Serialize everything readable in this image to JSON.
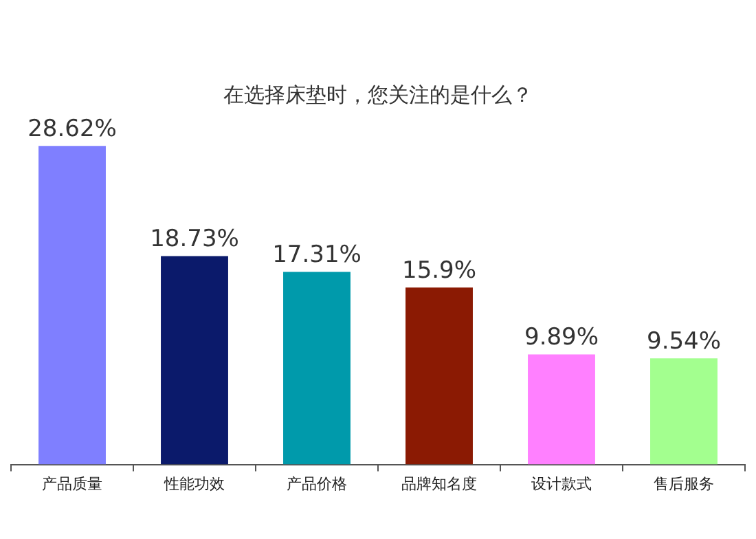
{
  "chart_data": {
    "type": "bar",
    "title": "在选择床垫时，您关注的是什么？",
    "categories": [
      "产品质量",
      "性能功效",
      "产品价格",
      "品牌知名度",
      "设计款式",
      "售后服务"
    ],
    "values": [
      28.62,
      18.73,
      17.31,
      15.9,
      9.89,
      9.54
    ],
    "value_labels": [
      "28.62%",
      "18.73%",
      "17.31%",
      "15.9%",
      "9.89%",
      "9.54%"
    ],
    "colors": [
      "#7f7fff",
      "#0b1a6b",
      "#009aab",
      "#8b1a03",
      "#ff80ff",
      "#a3ff8f"
    ],
    "grid": false,
    "legend": false
  }
}
